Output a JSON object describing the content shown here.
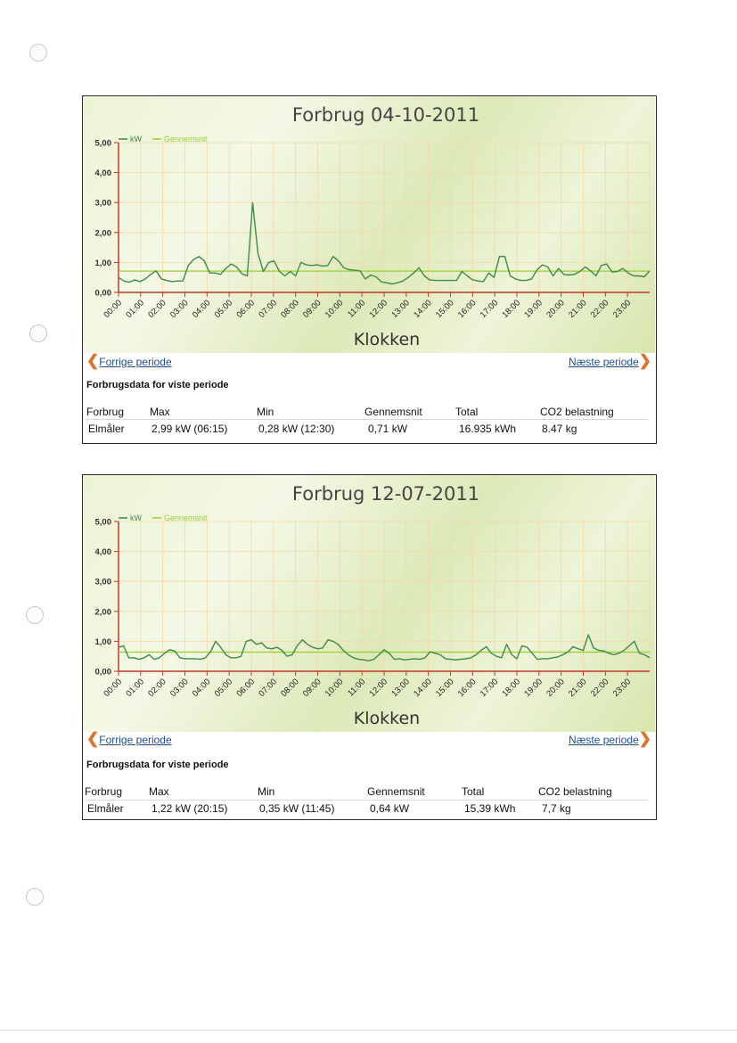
{
  "charts": [
    {
      "title": "Forbrug 04-10-2011",
      "legend_kw": "kW",
      "legend_avg": "Gennemsnit",
      "xlabel": "Klokken",
      "prev_label": "Forrige periode",
      "next_label": "Næste periode",
      "section_title": "Forbrugsdata for viste periode",
      "table": {
        "headers": [
          "Forbrug",
          "Max",
          "Min",
          "Gennemsnit",
          "Total",
          "CO2 belastning"
        ],
        "row": [
          "Elmåler",
          "2,99 kW (06:15)",
          "0,28 kW (12:30)",
          "0,71 kW",
          "16.935 kWh",
          "8.47 kg"
        ]
      },
      "colors": {
        "line": "#3f8a4a",
        "average": "#9acd32",
        "axis": "#c0392b"
      }
    },
    {
      "title": "Forbrug 12-07-2011",
      "legend_kw": "kW",
      "legend_avg": "Gennemsnit",
      "xlabel": "Klokken",
      "prev_label": "Forrige periode",
      "next_label": "Næste periode",
      "section_title": "Forbrugsdata for viste periode",
      "table": {
        "headers": [
          "Forbrug",
          "Max",
          "Min",
          "Gennemsnit",
          "Total",
          "CO2 belastning"
        ],
        "row": [
          "Elmåler",
          "1,22 kW (20:15)",
          "0,35 kW (11:45)",
          "0,64 kW",
          "15,39 kWh",
          "7,7 kg"
        ]
      },
      "colors": {
        "line": "#3f8a4a",
        "average": "#9acd32",
        "axis": "#c0392b"
      }
    }
  ],
  "chart_data": [
    {
      "type": "line",
      "title": "Forbrug 04-10-2011",
      "xlabel": "Klokken",
      "ylabel": "",
      "ylim": [
        0,
        5
      ],
      "yticks": [
        "0,00",
        "1,00",
        "2,00",
        "3,00",
        "4,00",
        "5,00"
      ],
      "xticks": [
        "00:00",
        "01:00",
        "02:00",
        "03:00",
        "04:00",
        "05:00",
        "06:00",
        "07:00",
        "08:00",
        "09:00",
        "10:00",
        "11:00",
        "12:00",
        "13:00",
        "14:00",
        "15:00",
        "16:00",
        "17:00",
        "18:00",
        "19:00",
        "20:00",
        "21:00",
        "22:00",
        "23:00"
      ],
      "grid": true,
      "legend": "top-left",
      "average": 0.71,
      "series": [
        {
          "name": "kW",
          "values": [
            0.5,
            0.38,
            0.34,
            0.42,
            0.36,
            0.45,
            0.6,
            0.72,
            0.45,
            0.4,
            0.36,
            0.38,
            0.38,
            0.9,
            1.1,
            1.2,
            1.05,
            0.65,
            0.65,
            0.6,
            0.8,
            0.95,
            0.85,
            0.62,
            0.55,
            2.99,
            1.3,
            0.7,
            1.0,
            1.05,
            0.7,
            0.55,
            0.7,
            0.55,
            1.0,
            0.92,
            0.9,
            0.92,
            0.88,
            0.9,
            1.2,
            1.05,
            0.82,
            0.76,
            0.74,
            0.72,
            0.45,
            0.58,
            0.52,
            0.35,
            0.32,
            0.28,
            0.32,
            0.38,
            0.5,
            0.65,
            0.82,
            0.55,
            0.42,
            0.4,
            0.4,
            0.4,
            0.4,
            0.4,
            0.7,
            0.55,
            0.42,
            0.38,
            0.36,
            0.65,
            0.5,
            1.2,
            1.2,
            0.55,
            0.45,
            0.4,
            0.4,
            0.45,
            0.75,
            0.92,
            0.85,
            0.55,
            0.8,
            0.6,
            0.58,
            0.6,
            0.7,
            0.85,
            0.72,
            0.55,
            0.9,
            0.95,
            0.68,
            0.7,
            0.8,
            0.65,
            0.55,
            0.55,
            0.52,
            0.72
          ]
        }
      ]
    },
    {
      "type": "line",
      "title": "Forbrug 12-07-2011",
      "xlabel": "Klokken",
      "ylabel": "",
      "ylim": [
        0,
        5
      ],
      "yticks": [
        "0,00",
        "1,00",
        "2,00",
        "3,00",
        "4,00",
        "5,00"
      ],
      "xticks": [
        "00:00",
        "01:00",
        "02:00",
        "03:00",
        "04:00",
        "05:00",
        "06:00",
        "07:00",
        "08:00",
        "09:00",
        "10:00",
        "11:00",
        "12:00",
        "13:00",
        "14:00",
        "15:00",
        "16:00",
        "17:00",
        "18:00",
        "19:00",
        "20:00",
        "21:00",
        "22:00",
        "23:00"
      ],
      "grid": true,
      "legend": "top-left",
      "average": 0.64,
      "series": [
        {
          "name": "kW",
          "values": [
            0.8,
            0.85,
            0.45,
            0.45,
            0.4,
            0.45,
            0.55,
            0.4,
            0.45,
            0.6,
            0.72,
            0.68,
            0.45,
            0.42,
            0.42,
            0.42,
            0.4,
            0.45,
            0.65,
            1.0,
            0.8,
            0.55,
            0.45,
            0.45,
            0.5,
            1.0,
            1.05,
            0.9,
            0.95,
            0.78,
            0.75,
            0.8,
            0.7,
            0.5,
            0.55,
            0.85,
            1.05,
            0.9,
            0.8,
            0.75,
            0.78,
            1.05,
            1.0,
            0.9,
            0.7,
            0.55,
            0.45,
            0.4,
            0.38,
            0.35,
            0.4,
            0.55,
            0.72,
            0.6,
            0.4,
            0.42,
            0.38,
            0.4,
            0.42,
            0.4,
            0.45,
            0.65,
            0.6,
            0.55,
            0.42,
            0.4,
            0.38,
            0.4,
            0.42,
            0.45,
            0.55,
            0.7,
            0.82,
            0.6,
            0.5,
            0.45,
            0.9,
            0.55,
            0.42,
            0.85,
            0.8,
            0.6,
            0.4,
            0.42,
            0.42,
            0.45,
            0.48,
            0.55,
            0.65,
            0.82,
            0.75,
            0.7,
            1.22,
            0.78,
            0.7,
            0.68,
            0.6,
            0.55,
            0.6,
            0.7,
            0.85,
            1.0,
            0.6,
            0.55,
            0.45
          ]
        }
      ]
    }
  ]
}
